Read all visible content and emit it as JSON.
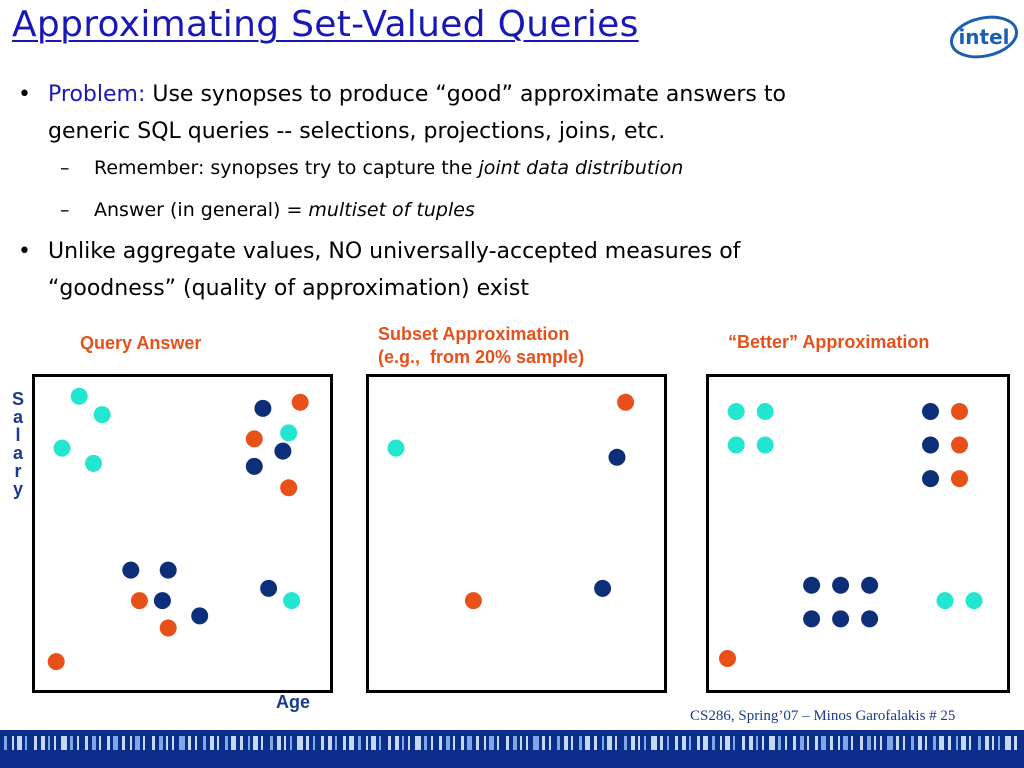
{
  "slide": {
    "title": "Approximating Set-Valued Queries",
    "logo_text": "intel",
    "bullets": [
      {
        "marker": "•",
        "lines": [
          "",
          "generic SQL queries -- selections, projections, joins, etc."
        ],
        "lead": "Problem:",
        "rest": " Use synopses to produce “good” approximate answers to",
        "subs": [
          {
            "marker": "–",
            "normal": "Remember:  synopses try to capture the ",
            "italic": "joint data distribution"
          },
          {
            "marker": "–",
            "normal": "Answer (in general)  = ",
            "italic": "multiset of tuples"
          }
        ]
      },
      {
        "marker": "•",
        "line1": "Unlike aggregate values,   NO  universally-accepted measures of",
        "line2": "“goodness” (quality of approximation) exist"
      }
    ],
    "footer": "CS286, Spring’07 – Minos Garofalakis   # 25"
  },
  "colors": {
    "cyan": "#22e6d0",
    "navy": "#0d2f7a",
    "orange": "#e8501a",
    "title_blue": "#1818b8"
  },
  "chart_data": [
    {
      "type": "scatter",
      "title": "Query Answer",
      "xlabel": "Age",
      "ylabel": "Salary",
      "xlim": [
        0,
        100
      ],
      "ylim": [
        0,
        100
      ],
      "series": [
        {
          "color": "cyan",
          "points": [
            [
              14,
              95
            ],
            [
              22,
              89
            ],
            [
              8,
              78
            ],
            [
              19,
              73
            ],
            [
              87,
              83
            ],
            [
              88,
              28
            ]
          ]
        },
        {
          "color": "navy",
          "points": [
            [
              78,
              91
            ],
            [
              85,
              77
            ],
            [
              75,
              72
            ],
            [
              32,
              38
            ],
            [
              45,
              38
            ],
            [
              43,
              28
            ],
            [
              56,
              23
            ],
            [
              80,
              32
            ]
          ]
        },
        {
          "color": "orange",
          "points": [
            [
              91,
              93
            ],
            [
              75,
              81
            ],
            [
              87,
              65
            ],
            [
              35,
              28
            ],
            [
              45,
              19
            ],
            [
              6,
              8
            ]
          ]
        }
      ]
    },
    {
      "type": "scatter",
      "title": "Subset Approximation\n(e.g.,  from 20% sample)",
      "xlim": [
        0,
        100
      ],
      "ylim": [
        0,
        100
      ],
      "series": [
        {
          "color": "cyan",
          "points": [
            [
              8,
              78
            ]
          ]
        },
        {
          "color": "navy",
          "points": [
            [
              85,
              75
            ],
            [
              80,
              32
            ]
          ]
        },
        {
          "color": "orange",
          "points": [
            [
              88,
              93
            ],
            [
              35,
              28
            ]
          ]
        }
      ]
    },
    {
      "type": "scatter",
      "title": "“Better” Approximation",
      "xlim": [
        0,
        100
      ],
      "ylim": [
        0,
        100
      ],
      "series": [
        {
          "color": "cyan",
          "points": [
            [
              8,
              90
            ],
            [
              18,
              90
            ],
            [
              8,
              79
            ],
            [
              18,
              79
            ],
            [
              80,
              28
            ],
            [
              90,
              28
            ]
          ]
        },
        {
          "color": "navy",
          "points": [
            [
              75,
              90
            ],
            [
              75,
              79
            ],
            [
              75,
              68
            ],
            [
              34,
              33
            ],
            [
              44,
              33
            ],
            [
              54,
              33
            ],
            [
              34,
              22
            ],
            [
              44,
              22
            ],
            [
              54,
              22
            ]
          ]
        },
        {
          "color": "orange",
          "points": [
            [
              85,
              90
            ],
            [
              85,
              79
            ],
            [
              85,
              68
            ],
            [
              5,
              9
            ]
          ]
        }
      ]
    }
  ]
}
